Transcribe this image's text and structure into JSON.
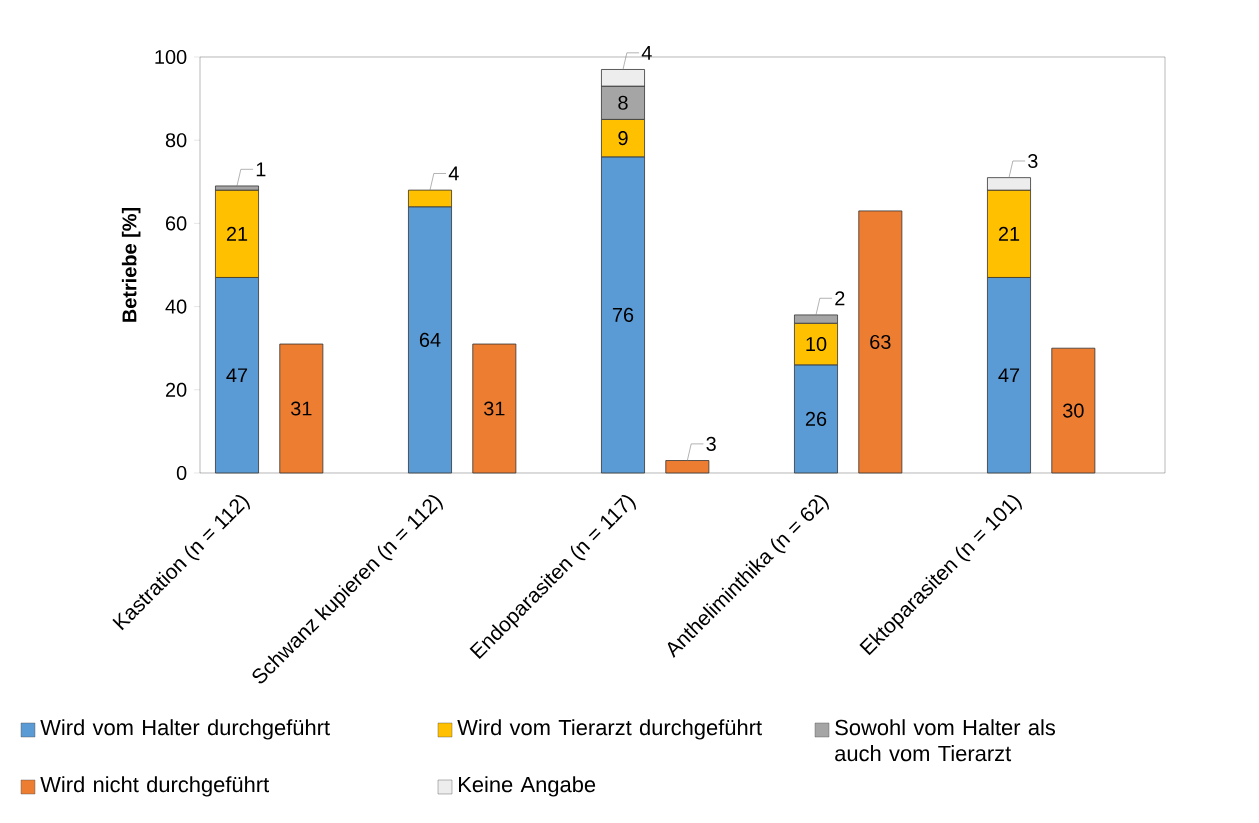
{
  "chart_data": {
    "type": "bar",
    "ylabel": "Betriebe [%]",
    "categories": [
      "Kastration (n = 112)",
      null,
      null,
      "Schwanz kupieren (n = 112)",
      null,
      null,
      "Endoparasiten (n = 117)",
      null,
      null,
      "Antheliminthika (n = 62)",
      null,
      null,
      "Ektoparasiten (n = 101)",
      null,
      null
    ],
    "stacked": true,
    "data_labels": true,
    "legend": "bottom",
    "ylim": [
      0,
      100
    ],
    "yticks": [
      0,
      20,
      40,
      60,
      80,
      100
    ],
    "series": [
      {
        "name": "Wird vom Halter durchgeführt",
        "color": "#5b9bd5",
        "values": [
          47,
          null,
          null,
          64,
          null,
          null,
          76,
          null,
          null,
          26,
          null,
          null,
          47,
          null,
          null
        ]
      },
      {
        "name": "Wird vom Tierarzt durchgeführt",
        "color": "#ffc000",
        "values": [
          21,
          null,
          null,
          4,
          null,
          null,
          9,
          null,
          null,
          10,
          null,
          null,
          21,
          null,
          null
        ]
      },
      {
        "name": "Sowohl vom Halter als auch vom Tierarzt",
        "color": "#a5a5a5",
        "values": [
          1,
          null,
          null,
          null,
          null,
          null,
          8,
          null,
          null,
          2,
          null,
          null,
          null,
          null,
          null
        ]
      },
      {
        "name": "Wird nicht durchgeführt",
        "color": "#ed7d31",
        "values": [
          null,
          31,
          null,
          null,
          31,
          null,
          null,
          3,
          null,
          null,
          63,
          null,
          null,
          30,
          null
        ]
      },
      {
        "name": "Keine Angabe",
        "color": "#ededed",
        "values": [
          null,
          null,
          null,
          null,
          null,
          null,
          4,
          null,
          null,
          null,
          null,
          null,
          3,
          null,
          null
        ]
      }
    ]
  }
}
